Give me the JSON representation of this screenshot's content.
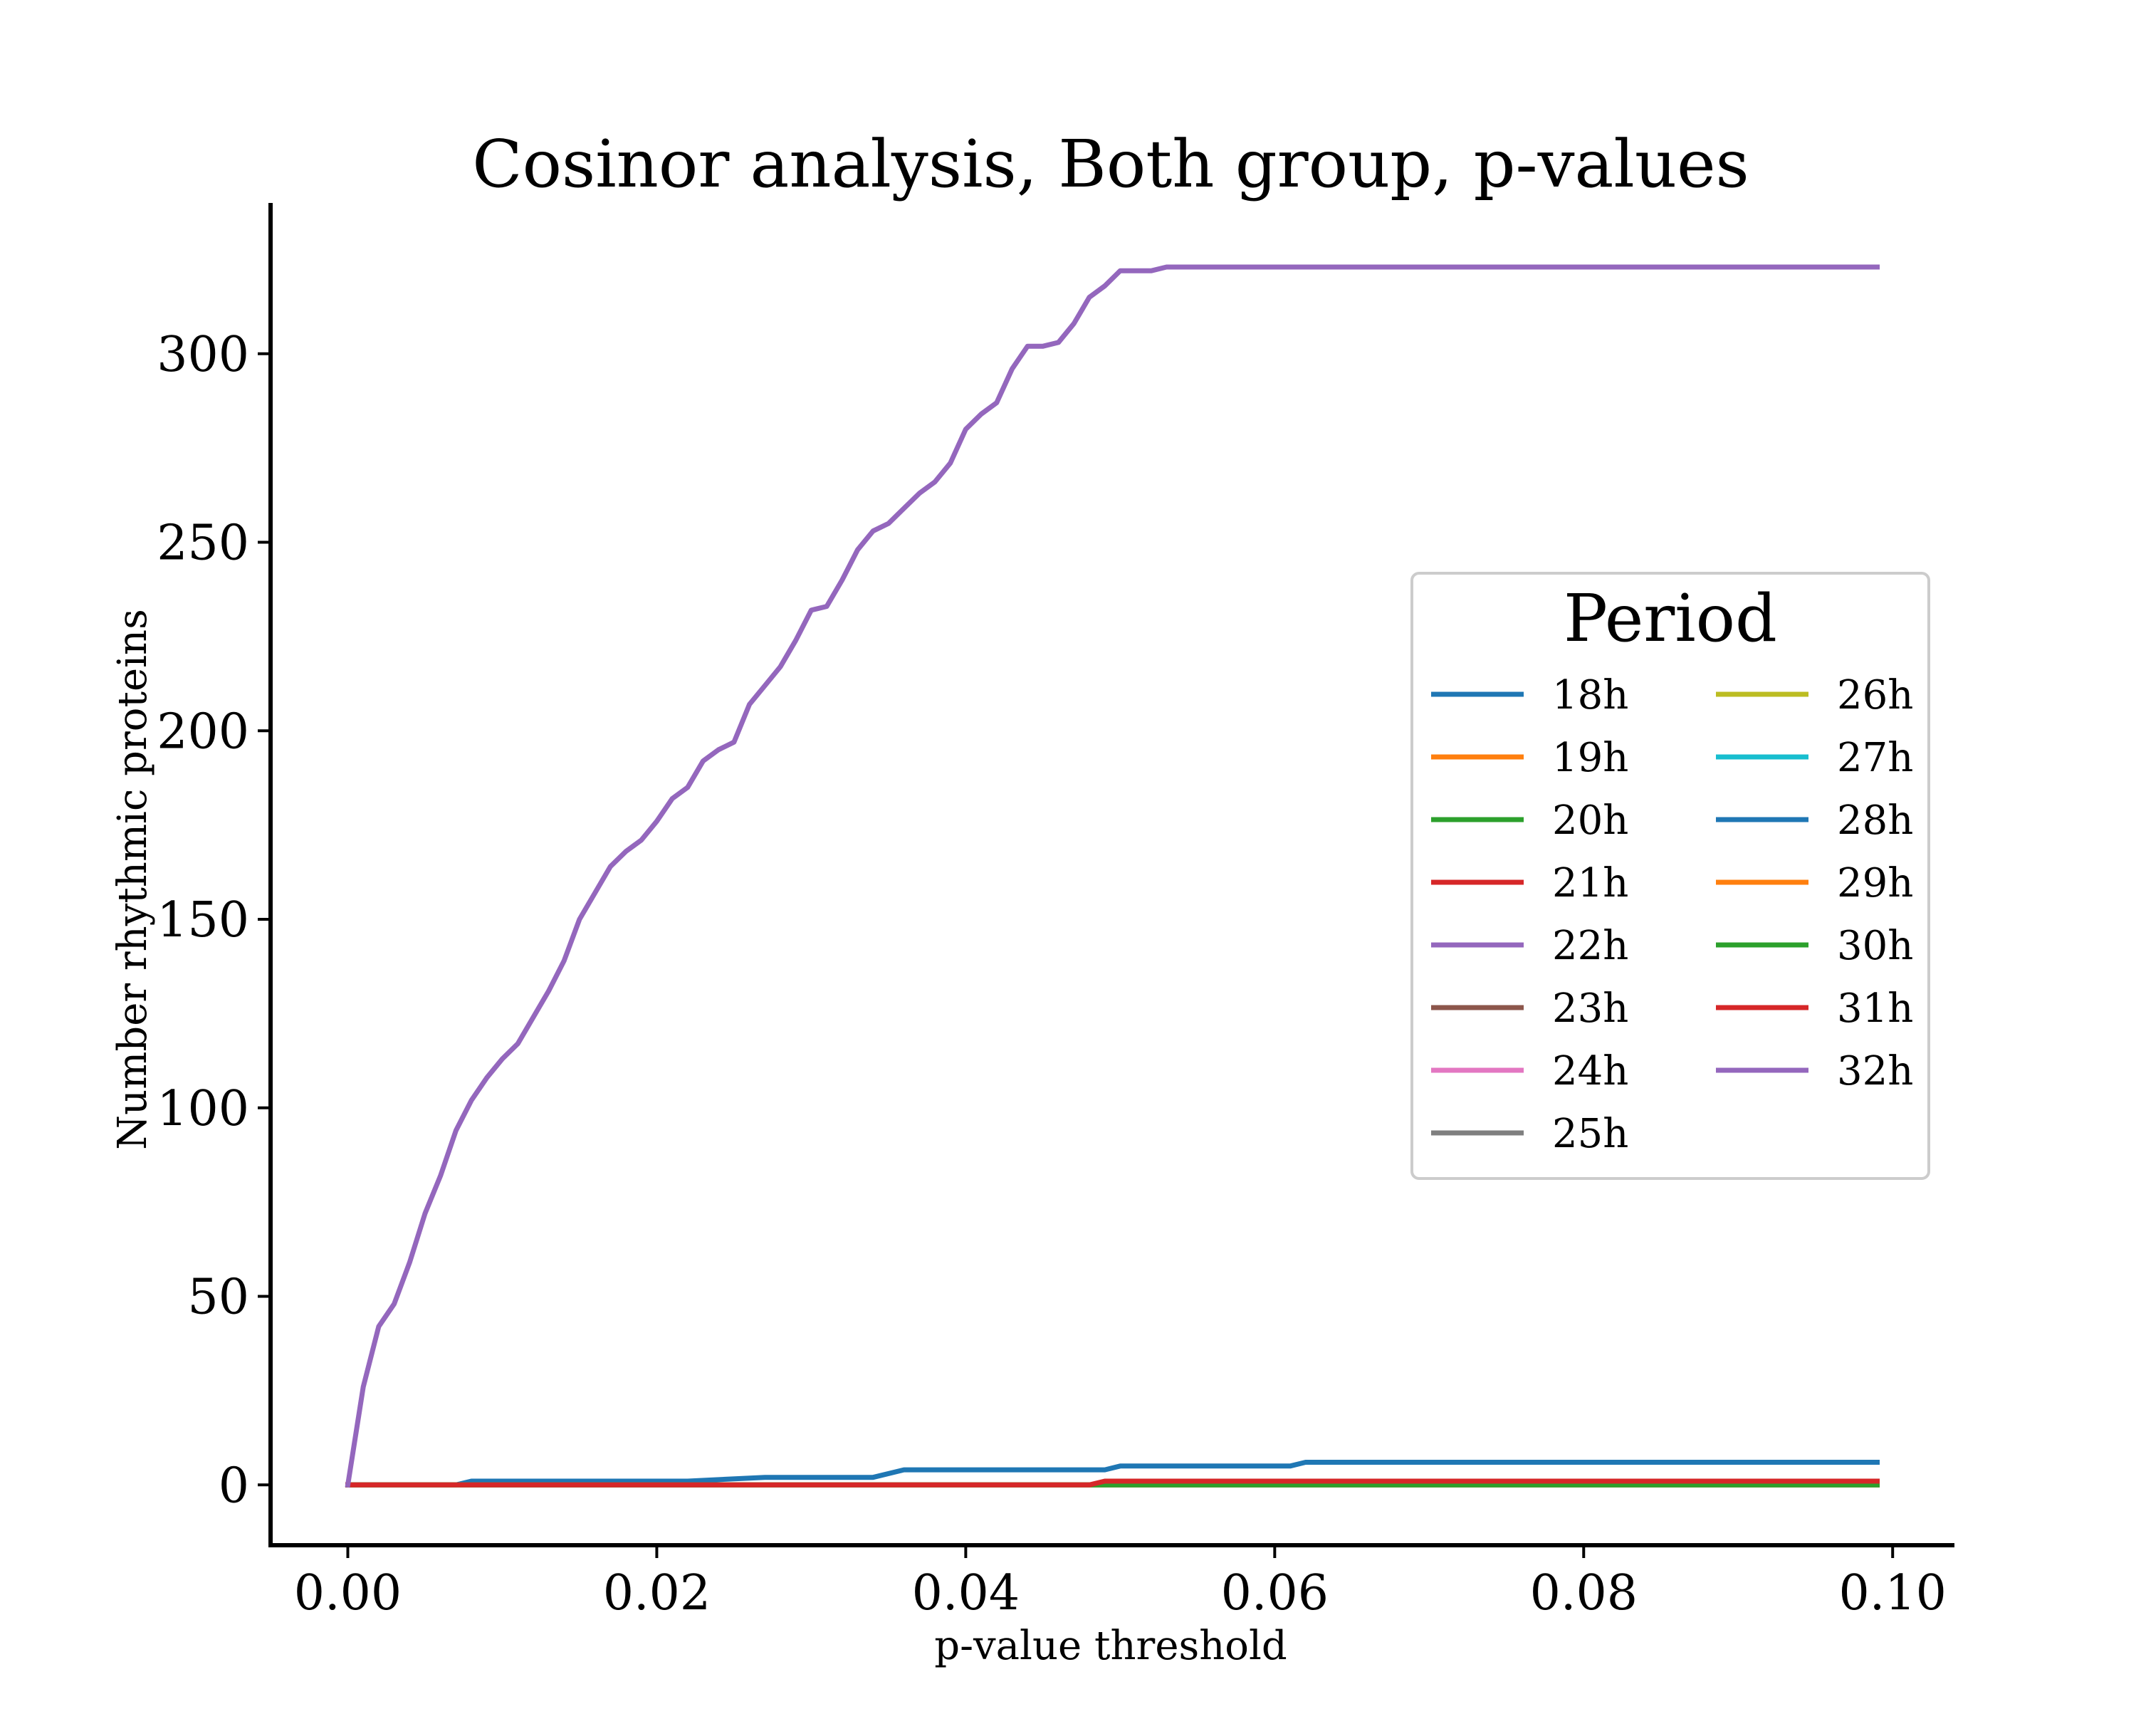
{
  "chart_data": {
    "type": "line",
    "title": "Cosinor analysis, Both group, p-values",
    "xlabel": "p-value threshold",
    "ylabel": "Number rhythmic proteins",
    "xlim": [
      -0.005,
      0.104
    ],
    "ylim": [
      -16,
      340
    ],
    "xticks": [
      0.0,
      0.02,
      0.04,
      0.06,
      0.08,
      0.1
    ],
    "xtick_labels": [
      "0.00",
      "0.02",
      "0.04",
      "0.06",
      "0.08",
      "0.10"
    ],
    "yticks": [
      0,
      50,
      100,
      150,
      200,
      250,
      300
    ],
    "ytick_labels": [
      "0",
      "50",
      "100",
      "150",
      "200",
      "250",
      "300"
    ],
    "grid": false,
    "legend": {
      "title": "Period",
      "placement": "center-right",
      "columns": 2
    },
    "series": [
      {
        "name": "18h",
        "color": "#1f77b4",
        "x": [
          0,
          0.099
        ],
        "y": [
          0,
          0
        ]
      },
      {
        "name": "19h",
        "color": "#ff7f0e",
        "x": [
          0,
          0.099
        ],
        "y": [
          0,
          0
        ]
      },
      {
        "name": "20h",
        "color": "#2ca02c",
        "x": [
          0,
          0.099
        ],
        "y": [
          0,
          0
        ]
      },
      {
        "name": "21h",
        "color": "#d62728",
        "x": [
          0,
          0.099
        ],
        "y": [
          0,
          0
        ]
      },
      {
        "name": "22h",
        "color": "#9467bd",
        "x": [
          0,
          0.099
        ],
        "y": [
          0,
          0
        ]
      },
      {
        "name": "23h",
        "color": "#8c564b",
        "x": [
          0,
          0.099
        ],
        "y": [
          0,
          0
        ]
      },
      {
        "name": "24h",
        "color": "#e377c2",
        "x": [
          0,
          0.099
        ],
        "y": [
          0,
          0
        ]
      },
      {
        "name": "25h",
        "color": "#7f7f7f",
        "x": [
          0,
          0.099
        ],
        "y": [
          0,
          0
        ]
      },
      {
        "name": "26h",
        "color": "#bcbd22",
        "x": [
          0,
          0.099
        ],
        "y": [
          0,
          0
        ]
      },
      {
        "name": "27h",
        "color": "#17becf",
        "x": [
          0,
          0.099
        ],
        "y": [
          0,
          0
        ]
      },
      {
        "name": "28h",
        "color": "#1f77b4",
        "x": [
          0,
          0.007,
          0.008,
          0.022,
          0.027,
          0.034,
          0.036,
          0.049,
          0.05,
          0.061,
          0.062,
          0.099
        ],
        "y": [
          0,
          0,
          1,
          1,
          2,
          2,
          4,
          4,
          5,
          5,
          6,
          6
        ]
      },
      {
        "name": "29h",
        "color": "#ff7f0e",
        "x": [
          0,
          0.099
        ],
        "y": [
          0,
          0
        ]
      },
      {
        "name": "30h",
        "color": "#2ca02c",
        "x": [
          0,
          0.099
        ],
        "y": [
          0,
          0
        ]
      },
      {
        "name": "31h",
        "color": "#d62728",
        "x": [
          0,
          0.048,
          0.049,
          0.099
        ],
        "y": [
          0,
          0,
          1,
          1
        ]
      },
      {
        "name": "32h",
        "color": "#9467bd",
        "x": [
          0,
          0.001,
          0.002,
          0.003,
          0.004,
          0.005,
          0.006,
          0.007,
          0.008,
          0.009,
          0.01,
          0.011,
          0.012,
          0.013,
          0.014,
          0.015,
          0.016,
          0.017,
          0.018,
          0.019,
          0.02,
          0.021,
          0.022,
          0.023,
          0.024,
          0.025,
          0.026,
          0.027,
          0.028,
          0.029,
          0.03,
          0.031,
          0.032,
          0.033,
          0.034,
          0.035,
          0.036,
          0.037,
          0.038,
          0.039,
          0.04,
          0.041,
          0.042,
          0.043,
          0.044,
          0.045,
          0.046,
          0.047,
          0.048,
          0.049,
          0.05,
          0.051,
          0.052,
          0.053,
          0.054,
          0.099
        ],
        "y": [
          0,
          26,
          42,
          48,
          59,
          72,
          82,
          94,
          102,
          108,
          113,
          117,
          124,
          131,
          139,
          150,
          157,
          164,
          168,
          171,
          176,
          182,
          185,
          192,
          195,
          197,
          207,
          212,
          217,
          224,
          232,
          233,
          240,
          248,
          253,
          255,
          259,
          263,
          266,
          271,
          280,
          284,
          287,
          296,
          302,
          302,
          303,
          308,
          315,
          318,
          322,
          322,
          322,
          323,
          323,
          323
        ]
      }
    ]
  }
}
